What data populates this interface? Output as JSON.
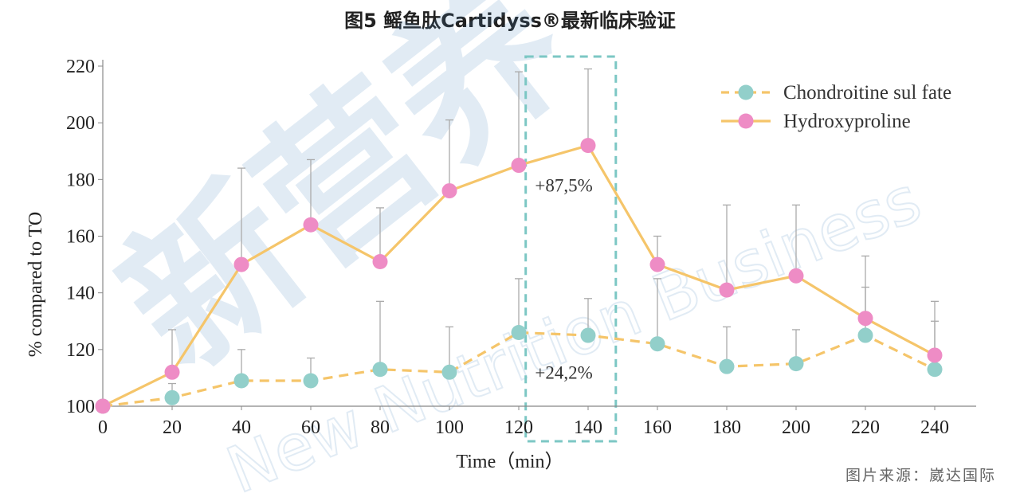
{
  "title": "图5 鳐鱼肽Cartidyss®最新临床验证",
  "source": "图片来源：崴达国际",
  "chart_data": {
    "type": "line",
    "xlabel": "Time（min）",
    "ylabel": "% compared to TO",
    "x": [
      0,
      20,
      40,
      60,
      80,
      100,
      120,
      140,
      160,
      180,
      200,
      220,
      240
    ],
    "xlim": [
      0,
      250
    ],
    "ylim": [
      100,
      220
    ],
    "yticks": [
      100,
      120,
      140,
      160,
      180,
      200,
      220
    ],
    "series": [
      {
        "name": "Chondroitine sul fate",
        "style": "dashed",
        "color": "#f5c56a",
        "marker_color": "#92cfca",
        "values": [
          100,
          103,
          109,
          109,
          113,
          112,
          126,
          125,
          122,
          114,
          115,
          125,
          113
        ],
        "error_upper": [
          100,
          108,
          120,
          117,
          137,
          128,
          145,
          138,
          145,
          128,
          127,
          142,
          130
        ]
      },
      {
        "name": "Hydroxyproline",
        "style": "solid",
        "color": "#f5c56a",
        "marker_color": "#ee8cc5",
        "values": [
          100,
          112,
          150,
          164,
          151,
          176,
          185,
          192,
          150,
          141,
          146,
          131,
          118
        ],
        "error_upper": [
          100,
          127,
          184,
          187,
          170,
          201,
          218,
          219,
          160,
          171,
          171,
          153,
          137
        ]
      }
    ],
    "highlight": {
      "x_from": 122,
      "x_to": 148,
      "color": "#7cc7c4"
    },
    "annotations": [
      {
        "text": "+87,5%",
        "x": 133,
        "y": 178
      },
      {
        "text": "+24,2%",
        "x": 133,
        "y": 112
      }
    ],
    "legend": "top-right"
  }
}
